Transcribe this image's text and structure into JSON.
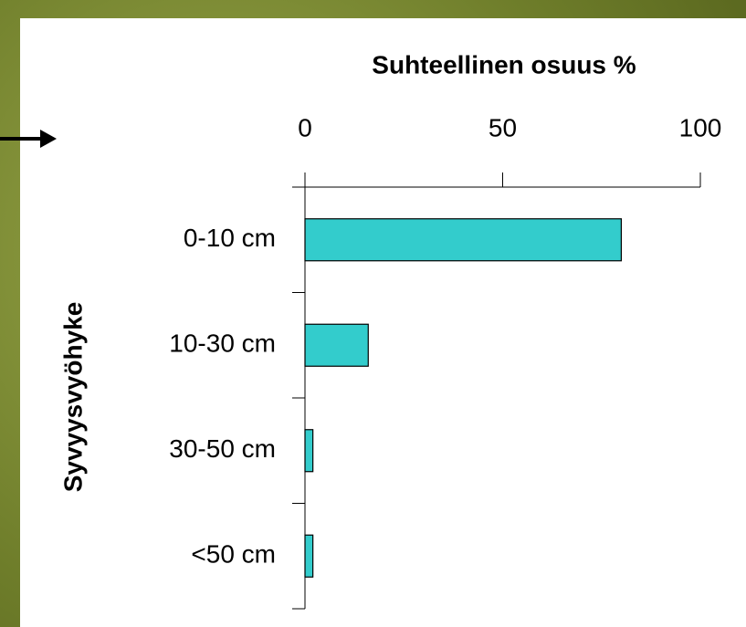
{
  "chart_data": {
    "type": "bar",
    "orientation": "horizontal",
    "x_label": "Suhteellinen osuus %",
    "y_label": "Syvyysvyöhyke",
    "categories": [
      "0-10 cm",
      "10-30 cm",
      "30-50 cm",
      "<50 cm"
    ],
    "values": [
      80,
      16,
      2,
      2
    ],
    "color": "#33cccc",
    "xlim": [
      0,
      100
    ],
    "xticks": [
      0,
      50,
      100
    ]
  }
}
